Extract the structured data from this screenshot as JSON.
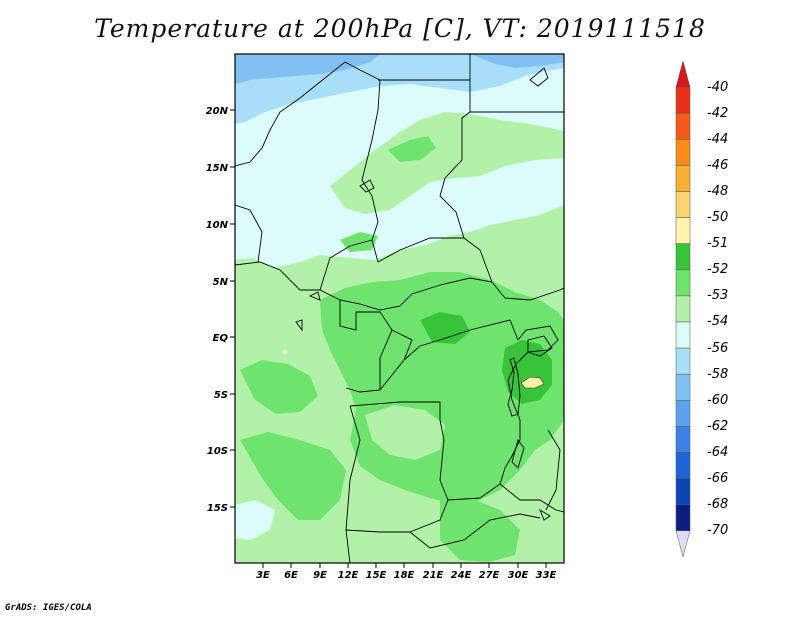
{
  "title": "Temperature at 200hPa [C], VT: 2019111518",
  "footer": "GrADS: IGES/COLA",
  "lat_labels": [
    "20N",
    "15N",
    "10N",
    "5N",
    "EQ",
    "5S",
    "10S",
    "15S"
  ],
  "lon_labels": [
    "3E",
    "6E",
    "9E",
    "12E",
    "15E",
    "18E",
    "21E",
    "24E",
    "27E",
    "30E",
    "33E"
  ],
  "colorbar": {
    "labels": [
      "-40",
      "-42",
      "-44",
      "-46",
      "-48",
      "-50",
      "-51",
      "-52",
      "-53",
      "-54",
      "-56",
      "-58",
      "-60",
      "-62",
      "-64",
      "-66",
      "-68",
      "-70"
    ],
    "colors": [
      "#d7181c",
      "#e9301a",
      "#f45a1a",
      "#f98c18",
      "#fbb132",
      "#fad66e",
      "#fcf6ac",
      "#38c438",
      "#6ee46e",
      "#b2f2a8",
      "#dcfcfc",
      "#a8def8",
      "#82c0f4",
      "#5ea2ee",
      "#3c82e6",
      "#1e64d6",
      "#0a46b4",
      "#0a1e82",
      "#e0dcf8"
    ]
  },
  "palette": {
    "warm_spot": "#fcf2a4",
    "green_dark": "#38c438",
    "green_mid": "#6ee46e",
    "green_light": "#b2f2a8",
    "cyan_light": "#dcfcfc",
    "blue_light": "#a8def8",
    "blue_mid": "#82c0f4"
  }
}
